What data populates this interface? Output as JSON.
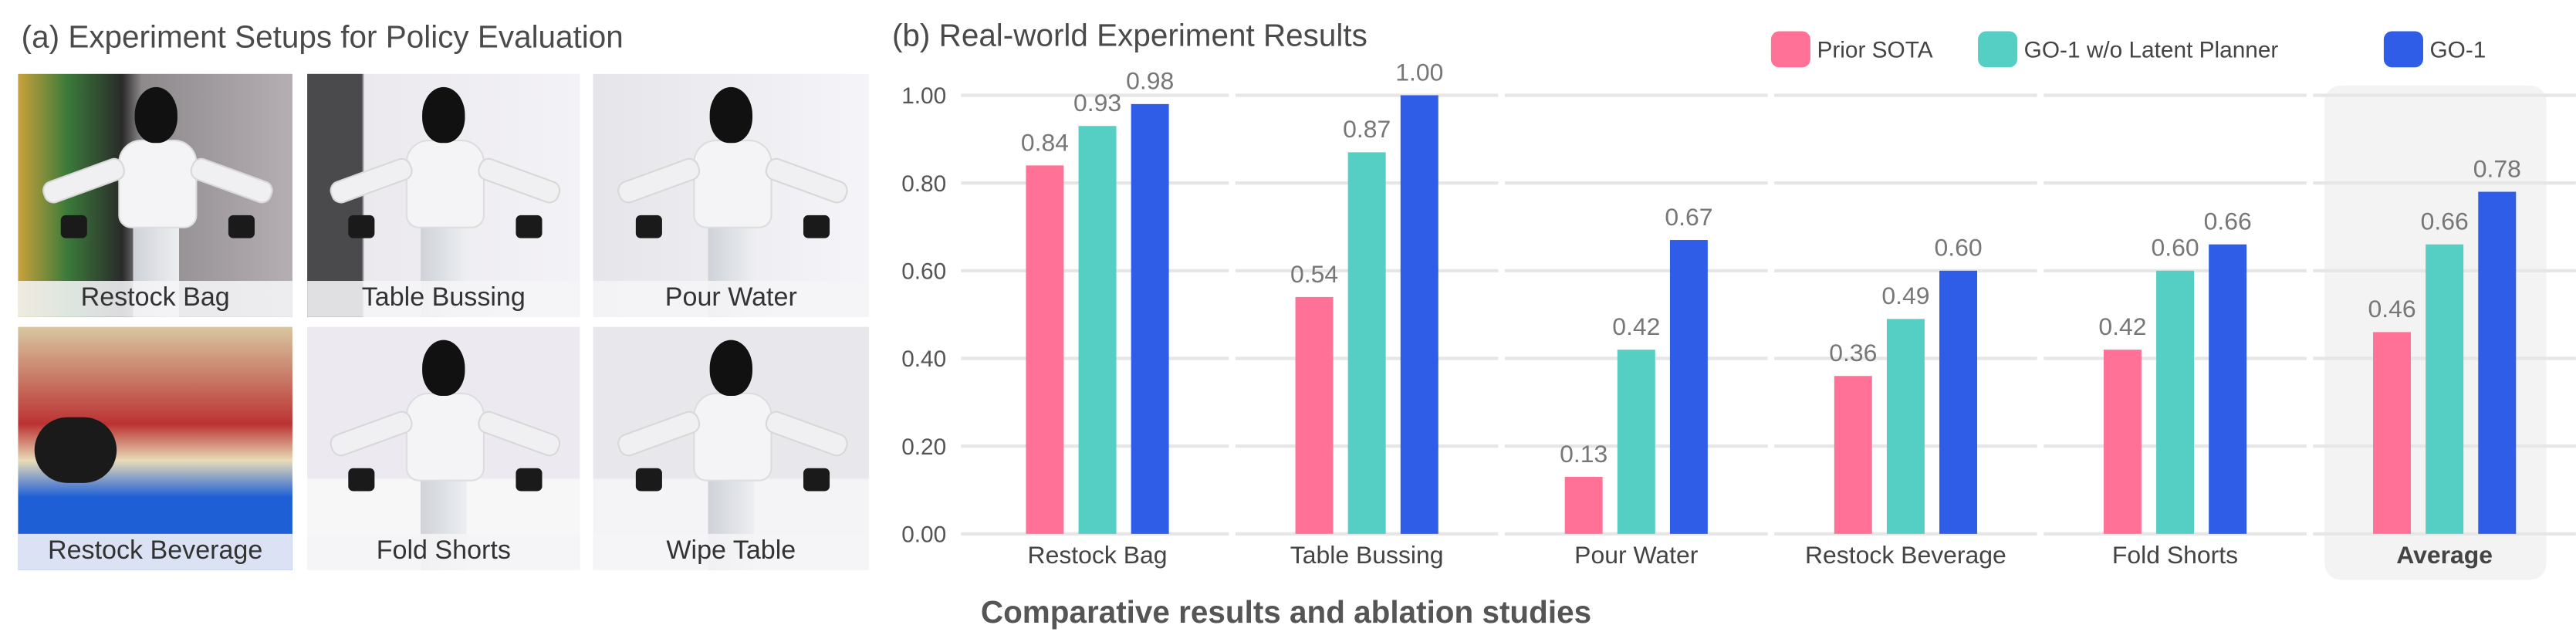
{
  "panel_a": {
    "title": "(a) Experiment Setups for Policy Evaluation",
    "tiles": [
      {
        "label": "Restock Bag",
        "scene": "shelf-snacks"
      },
      {
        "label": "Table Bussing",
        "scene": "table-fruit"
      },
      {
        "label": "Pour Water",
        "scene": "pour-cup"
      },
      {
        "label": "Restock Beverage",
        "scene": "beverage-shelf"
      },
      {
        "label": "Fold Shorts",
        "scene": "shorts-table"
      },
      {
        "label": "Wipe Table",
        "scene": "wipe-table"
      }
    ]
  },
  "panel_b": {
    "title": "(b) Real-world Experiment Results",
    "caption": "Comparative results and ablation studies"
  },
  "chart_data": {
    "type": "bar",
    "title": "(b) Real-world Experiment Results",
    "xlabel": "",
    "ylabel": "",
    "ylim": [
      0,
      1.0
    ],
    "yticks": [
      "0.00",
      "0.20",
      "0.40",
      "0.60",
      "0.80",
      "1.00"
    ],
    "grid": true,
    "legend_position": "top-right",
    "categories": [
      "Restock Bag",
      "Table Bussing",
      "Pour Water",
      "Restock Beverage",
      "Fold Shorts",
      "Average"
    ],
    "highlighted_category": "Average",
    "series": [
      {
        "name": "Prior SOTA",
        "color": "#FF7196",
        "values": [
          0.84,
          0.54,
          0.13,
          0.36,
          0.42,
          0.46
        ]
      },
      {
        "name": "GO-1 w/o Latent Planner",
        "color": "#55CFC4",
        "values": [
          0.93,
          0.87,
          0.42,
          0.49,
          0.6,
          0.66
        ]
      },
      {
        "name": "GO-1",
        "color": "#2F5DE8",
        "values": [
          0.98,
          1.0,
          0.67,
          0.6,
          0.66,
          0.78
        ]
      }
    ]
  }
}
